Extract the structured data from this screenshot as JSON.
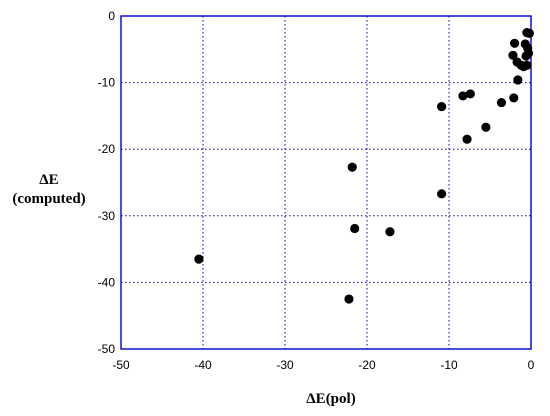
{
  "chart_data": {
    "type": "scatter",
    "xlabel": "ΔE(pol)",
    "ylabel_lines": [
      "ΔE",
      "(computed)"
    ],
    "xlim": [
      -50,
      0
    ],
    "ylim": [
      -50,
      0
    ],
    "xticks": [
      -50,
      -40,
      -30,
      -20,
      -10,
      0
    ],
    "yticks": [
      0,
      -10,
      -20,
      -30,
      -40,
      -50
    ],
    "grid": true,
    "colors": {
      "axes": "#0000cc",
      "points": "#000000"
    },
    "points": [
      {
        "x": -40.5,
        "y": -36.5
      },
      {
        "x": -22.2,
        "y": -42.5
      },
      {
        "x": -21.8,
        "y": -22.7
      },
      {
        "x": -21.5,
        "y": -31.9
      },
      {
        "x": -17.2,
        "y": -32.4
      },
      {
        "x": -10.9,
        "y": -13.6
      },
      {
        "x": -10.9,
        "y": -26.7
      },
      {
        "x": -8.3,
        "y": -12.0
      },
      {
        "x": -7.8,
        "y": -18.5
      },
      {
        "x": -7.4,
        "y": -11.7
      },
      {
        "x": -5.5,
        "y": -16.7
      },
      {
        "x": -3.6,
        "y": -13.0
      },
      {
        "x": -2.1,
        "y": -12.3
      },
      {
        "x": -1.6,
        "y": -9.6
      },
      {
        "x": -2.0,
        "y": -4.1
      },
      {
        "x": -2.2,
        "y": -5.9
      },
      {
        "x": -1.7,
        "y": -6.9
      },
      {
        "x": -1.2,
        "y": -7.4
      },
      {
        "x": -0.9,
        "y": -7.6
      },
      {
        "x": -0.5,
        "y": -7.4
      },
      {
        "x": -0.6,
        "y": -6.0
      },
      {
        "x": -0.7,
        "y": -4.2
      },
      {
        "x": -0.4,
        "y": -4.8
      },
      {
        "x": -0.3,
        "y": -5.6
      },
      {
        "x": -0.5,
        "y": -2.5
      },
      {
        "x": -0.2,
        "y": -2.6
      }
    ]
  }
}
